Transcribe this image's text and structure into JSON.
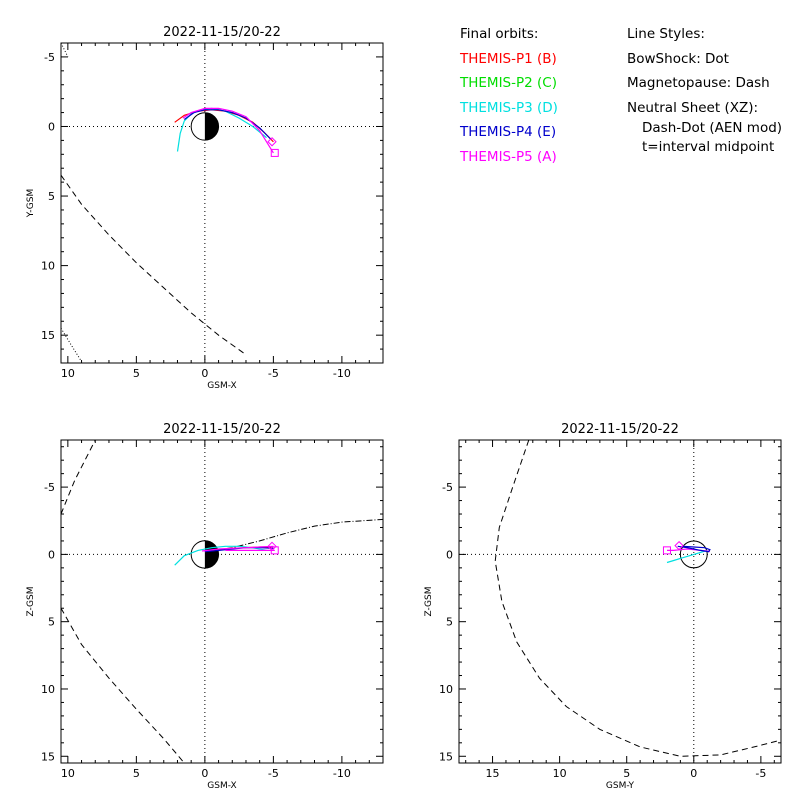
{
  "legend": {
    "orbits_title": "Final orbits:",
    "probes": [
      {
        "label": "THEMIS-P1 (B)",
        "color": "#ff0000"
      },
      {
        "label": "THEMIS-P2 (C)",
        "color": "#00dd00"
      },
      {
        "label": "THEMIS-P3 (D)",
        "color": "#00e0e0"
      },
      {
        "label": "THEMIS-P4 (E)",
        "color": "#0000cc"
      },
      {
        "label": "THEMIS-P5 (A)",
        "color": "#ff00ff"
      }
    ],
    "styles_title": "Line Styles:",
    "styles": [
      "BowShock: Dot",
      "Magnetopause: Dash",
      "Neutral Sheet (XZ):",
      "Dash-Dot (AEN mod)",
      "t=interval midpoint"
    ]
  },
  "chart_data": [
    {
      "type": "line",
      "title": "2022-11-15/20-22",
      "xlabel": "GSM-X",
      "ylabel": "Y-GSM",
      "xlim": [
        10.5,
        -13
      ],
      "ylim": [
        -6,
        17
      ],
      "xticks": [
        10,
        5,
        0,
        -5,
        -10
      ],
      "yticks": [
        -5,
        0,
        5,
        10,
        15
      ],
      "magnetopause": {
        "x": [
          10.5,
          9,
          7,
          5,
          3,
          1,
          -1,
          -3
        ],
        "y": [
          3.5,
          5.6,
          7.8,
          9.8,
          11.6,
          13.4,
          15.0,
          16.4
        ]
      },
      "bowshock": {
        "x": [
          10.5,
          9.7,
          9
        ],
        "y": [
          14.5,
          15.8,
          16.9
        ]
      },
      "bowshock_top": {
        "x": [
          10.5,
          10
        ],
        "y": [
          -6,
          -5
        ]
      },
      "series": [
        {
          "color": "#ff0000",
          "x": [
            2.2,
            1.5,
            0.5,
            -0.5,
            -1.5,
            -2.5,
            -3.5,
            -4.3,
            -5.0
          ],
          "y": [
            -0.3,
            -0.8,
            -1.1,
            -1.2,
            -1.1,
            -0.8,
            -0.3,
            0.4,
            1.1
          ]
        },
        {
          "color": "#00e0e0",
          "x": [
            2.0,
            1.8,
            1.5,
            1.0,
            0.3,
            -0.5,
            -1.5,
            -2.5,
            -3.5,
            -4.5
          ],
          "y": [
            1.8,
            0.5,
            -0.4,
            -0.9,
            -1.2,
            -1.3,
            -1.1,
            -0.6,
            0.0,
            0.8
          ]
        },
        {
          "color": "#0000cc",
          "x": [
            1.5,
            0.8,
            0,
            -1.0,
            -2.0,
            -3.0,
            -4.0,
            -4.8
          ],
          "y": [
            -0.5,
            -1.0,
            -1.2,
            -1.2,
            -1.0,
            -0.6,
            0.1,
            0.9
          ]
        },
        {
          "color": "#ff00ff",
          "x": [
            1.6,
            1.0,
            0,
            -1.0,
            -2.0,
            -3.0,
            -4.0,
            -5.0
          ],
          "y": [
            -0.6,
            -1.0,
            -1.3,
            -1.3,
            -1.1,
            -0.7,
            0.3,
            1.9
          ]
        }
      ],
      "markers": [
        {
          "shape": "diamond",
          "color": "#ff00ff",
          "x": -4.9,
          "y": 1.1
        },
        {
          "shape": "square",
          "color": "#ff00ff",
          "x": -5.1,
          "y": 1.9
        }
      ]
    },
    {
      "type": "line",
      "title": "2022-11-15/20-22",
      "xlabel": "GSM-X",
      "ylabel": "Z-GSM",
      "xlim": [
        10.5,
        -13
      ],
      "ylim": [
        -8.5,
        15.5
      ],
      "xticks": [
        10,
        5,
        0,
        -5,
        -10
      ],
      "yticks": [
        -5,
        0,
        5,
        10,
        15
      ],
      "magnetopause": {
        "x": [
          10.5,
          9,
          7,
          5,
          3,
          1.5
        ],
        "y": [
          4,
          6.7,
          9.2,
          11.5,
          13.7,
          15.5
        ]
      },
      "magnetopause_low": {
        "x": [
          10.5,
          9.5,
          8
        ],
        "y": [
          -3,
          -5.5,
          -8.5
        ]
      },
      "neutral_sheet": {
        "x": [
          0,
          -2,
          -4,
          -6,
          -8,
          -10,
          -13
        ],
        "y": [
          -0.2,
          -0.5,
          -1.0,
          -1.6,
          -2.1,
          -2.4,
          -2.6
        ]
      },
      "series": [
        {
          "color": "#00e0e0",
          "x": [
            2.2,
            1.5,
            0.5,
            -0.5,
            -1.5,
            -2.5,
            -3.5,
            -4.5
          ],
          "y": [
            0.8,
            0.1,
            -0.3,
            -0.5,
            -0.6,
            -0.6,
            -0.5,
            -0.3
          ]
        },
        {
          "color": "#ff0000",
          "x": [
            0,
            -1,
            -2,
            -3,
            -4,
            -5
          ],
          "y": [
            -0.2,
            -0.35,
            -0.45,
            -0.5,
            -0.55,
            -0.55
          ]
        },
        {
          "color": "#0000cc",
          "x": [
            0,
            -1,
            -2,
            -3,
            -4,
            -5
          ],
          "y": [
            -0.2,
            -0.3,
            -0.4,
            -0.5,
            -0.5,
            -0.45
          ]
        },
        {
          "color": "#ff00ff",
          "x": [
            0.2,
            -1,
            -2,
            -3,
            -4,
            -5
          ],
          "y": [
            -0.25,
            -0.4,
            -0.45,
            -0.5,
            -0.55,
            -0.6
          ]
        },
        {
          "color": "#ff00ff",
          "x": [
            -1.5,
            -3,
            -5.1
          ],
          "y": [
            -0.3,
            -0.3,
            -0.3
          ]
        }
      ],
      "markers": [
        {
          "shape": "square",
          "color": "#ff00ff",
          "x": -5.1,
          "y": -0.3
        },
        {
          "shape": "diamond",
          "color": "#ff00ff",
          "x": -4.9,
          "y": -0.6
        }
      ]
    },
    {
      "type": "line",
      "title": "2022-11-15/20-22",
      "xlabel": "GSM-Y",
      "ylabel": "Z-GSM",
      "xlim": [
        17.5,
        -6.5
      ],
      "ylim": [
        -8.5,
        15.5
      ],
      "xticks": [
        15,
        10,
        5,
        0,
        -5
      ],
      "yticks": [
        -5,
        0,
        5,
        10,
        15
      ],
      "magnetopause": {
        "x": [
          12.3,
          13.5,
          14.5,
          14.8,
          14.3,
          13.2,
          11.5,
          9.5,
          7,
          4,
          1,
          -2,
          -4.5,
          -6.5
        ],
        "y": [
          -8.5,
          -5.0,
          -2.0,
          0.5,
          3.5,
          6.5,
          9.2,
          11.3,
          13.0,
          14.3,
          15.0,
          14.9,
          14.3,
          13.8
        ]
      },
      "series": [
        {
          "color": "#00e0e0",
          "x": [
            2.0,
            1.5,
            1.0,
            0.5,
            0,
            -0.5,
            -1.0
          ],
          "y": [
            0.6,
            0.45,
            0.3,
            0.15,
            0,
            -0.15,
            -0.3
          ]
        },
        {
          "color": "#ff00ff",
          "x": [
            2.0,
            1.5,
            1.0,
            0.5,
            0,
            -0.5,
            -1.0,
            -1.2
          ],
          "y": [
            -0.3,
            -0.3,
            -0.35,
            -0.4,
            -0.35,
            -0.3,
            -0.25,
            -0.2
          ]
        },
        {
          "color": "#0000cc",
          "x": [
            1.2,
            0.5,
            0,
            -0.5,
            -1.1,
            -1.2,
            -0.8,
            0,
            0.8
          ],
          "y": [
            -0.6,
            -0.5,
            -0.4,
            -0.3,
            -0.2,
            -0.35,
            -0.5,
            -0.55,
            -0.6
          ]
        }
      ],
      "markers": [
        {
          "shape": "square",
          "color": "#ff00ff",
          "x": 2.0,
          "y": -0.3
        },
        {
          "shape": "diamond",
          "color": "#ff00ff",
          "x": 1.1,
          "y": -0.65
        }
      ]
    }
  ]
}
